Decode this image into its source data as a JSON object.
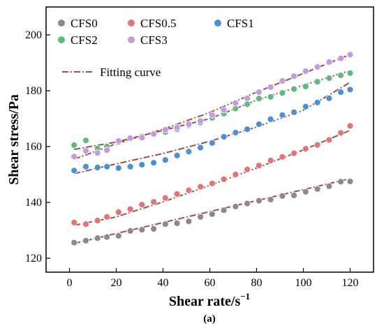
{
  "chart_data": {
    "type": "scatter",
    "caption": "(a)",
    "xlabel": "Shear rate/s",
    "xlabel_sup": "−1",
    "ylabel": "Shear stress/Pa",
    "xlim": [
      -10,
      130
    ],
    "ylim": [
      115,
      210
    ],
    "xticks": [
      0,
      20,
      40,
      60,
      80,
      100,
      120
    ],
    "yticks": [
      120,
      140,
      160,
      180,
      200
    ],
    "fit_label": "Fitting curve",
    "fit_color": "#9a5050",
    "series": [
      {
        "name": "CFS0",
        "color": "#8a8a8a",
        "x": [
          2,
          7,
          12,
          16,
          21,
          26,
          31,
          36,
          41,
          46,
          51,
          56,
          61,
          66,
          71,
          76,
          81,
          86,
          91,
          96,
          101,
          106,
          111,
          116,
          120
        ],
        "y": [
          125.6,
          126.3,
          127.2,
          127.6,
          128.0,
          129.8,
          130.2,
          130.5,
          132.2,
          132.5,
          133.2,
          134.8,
          135.8,
          137.2,
          138.5,
          139.6,
          140.6,
          141.0,
          142.3,
          142.5,
          143.8,
          144.8,
          145.8,
          147.4,
          147.5
        ],
        "fit": [
          [
            2,
            125.3
          ],
          [
            120,
            148.5
          ]
        ]
      },
      {
        "name": "CFS0.5",
        "color": "#e57373",
        "x": [
          2,
          7,
          12,
          16,
          21,
          26,
          31,
          36,
          41,
          46,
          51,
          56,
          61,
          66,
          71,
          76,
          81,
          86,
          91,
          96,
          101,
          106,
          111,
          116,
          120
        ],
        "y": [
          132.8,
          132.2,
          133.5,
          134.8,
          136.5,
          137.6,
          139.2,
          140.2,
          141.6,
          143.0,
          144.3,
          145.6,
          146.8,
          148.3,
          150.0,
          151.8,
          153.2,
          155.0,
          156.3,
          157.6,
          159.2,
          160.6,
          162.4,
          164.9,
          167.4
        ],
        "fit": [
          [
            2,
            131.8
          ],
          [
            20,
            134.8
          ],
          [
            40,
            140.2
          ],
          [
            60,
            146.1
          ],
          [
            80,
            152.3
          ],
          [
            100,
            158.8
          ],
          [
            120,
            165.8
          ]
        ]
      },
      {
        "name": "CFS1",
        "color": "#4a90d9",
        "x": [
          2,
          7,
          12,
          16,
          21,
          26,
          31,
          36,
          41,
          46,
          51,
          56,
          61,
          66,
          71,
          76,
          81,
          86,
          91,
          96,
          101,
          106,
          111,
          116,
          120
        ],
        "y": [
          151.4,
          152.8,
          152.5,
          152.8,
          152.3,
          152.8,
          153.5,
          154.2,
          155.2,
          156.8,
          158.2,
          159.6,
          161.3,
          163.5,
          165.0,
          166.2,
          168.0,
          169.8,
          171.3,
          172.3,
          174.3,
          175.8,
          177.3,
          179.5,
          180.4
        ],
        "fit": [
          [
            2,
            150.3
          ],
          [
            20,
            153.8
          ],
          [
            40,
            157.5
          ],
          [
            60,
            161.9
          ],
          [
            80,
            167.0
          ],
          [
            100,
            173.0
          ],
          [
            120,
            183.0
          ]
        ]
      },
      {
        "name": "CFS2",
        "color": "#5fba7d",
        "x": [
          2,
          7,
          12,
          16,
          21,
          26,
          31,
          36,
          41,
          46,
          51,
          56,
          61,
          66,
          71,
          76,
          81,
          86,
          91,
          96,
          101,
          106,
          111,
          116,
          120
        ],
        "y": [
          160.5,
          162.2,
          159.3,
          160.0,
          161.6,
          163.1,
          163.6,
          164.5,
          165.2,
          166.2,
          167.6,
          168.6,
          170.3,
          171.8,
          173.6,
          175.2,
          177.2,
          177.8,
          179.2,
          180.6,
          181.5,
          183.2,
          184.5,
          185.5,
          186.3
        ],
        "fit": [
          [
            2,
            159.0
          ],
          [
            20,
            161.6
          ],
          [
            40,
            165.8
          ],
          [
            60,
            170.0
          ],
          [
            80,
            176.6
          ],
          [
            100,
            182.0
          ],
          [
            120,
            187.2
          ]
        ]
      },
      {
        "name": "CFS3",
        "color": "#c39be0",
        "x": [
          2,
          7,
          12,
          16,
          21,
          26,
          31,
          36,
          41,
          46,
          51,
          56,
          61,
          66,
          71,
          76,
          81,
          86,
          91,
          96,
          101,
          106,
          111,
          116,
          120
        ],
        "y": [
          156.4,
          158.4,
          157.7,
          158.7,
          162.0,
          163.0,
          163.2,
          164.5,
          166.0,
          166.8,
          168.0,
          169.2,
          171.3,
          173.1,
          175.6,
          177.3,
          179.5,
          181.3,
          183.5,
          185.2,
          187.0,
          188.5,
          190.3,
          191.6,
          192.9
        ],
        "fit": [
          [
            2,
            155.5
          ],
          [
            20,
            161.0
          ],
          [
            40,
            166.2
          ],
          [
            60,
            172.2
          ],
          [
            80,
            179.5
          ],
          [
            100,
            186.2
          ],
          [
            120,
            193.0
          ]
        ]
      }
    ]
  }
}
